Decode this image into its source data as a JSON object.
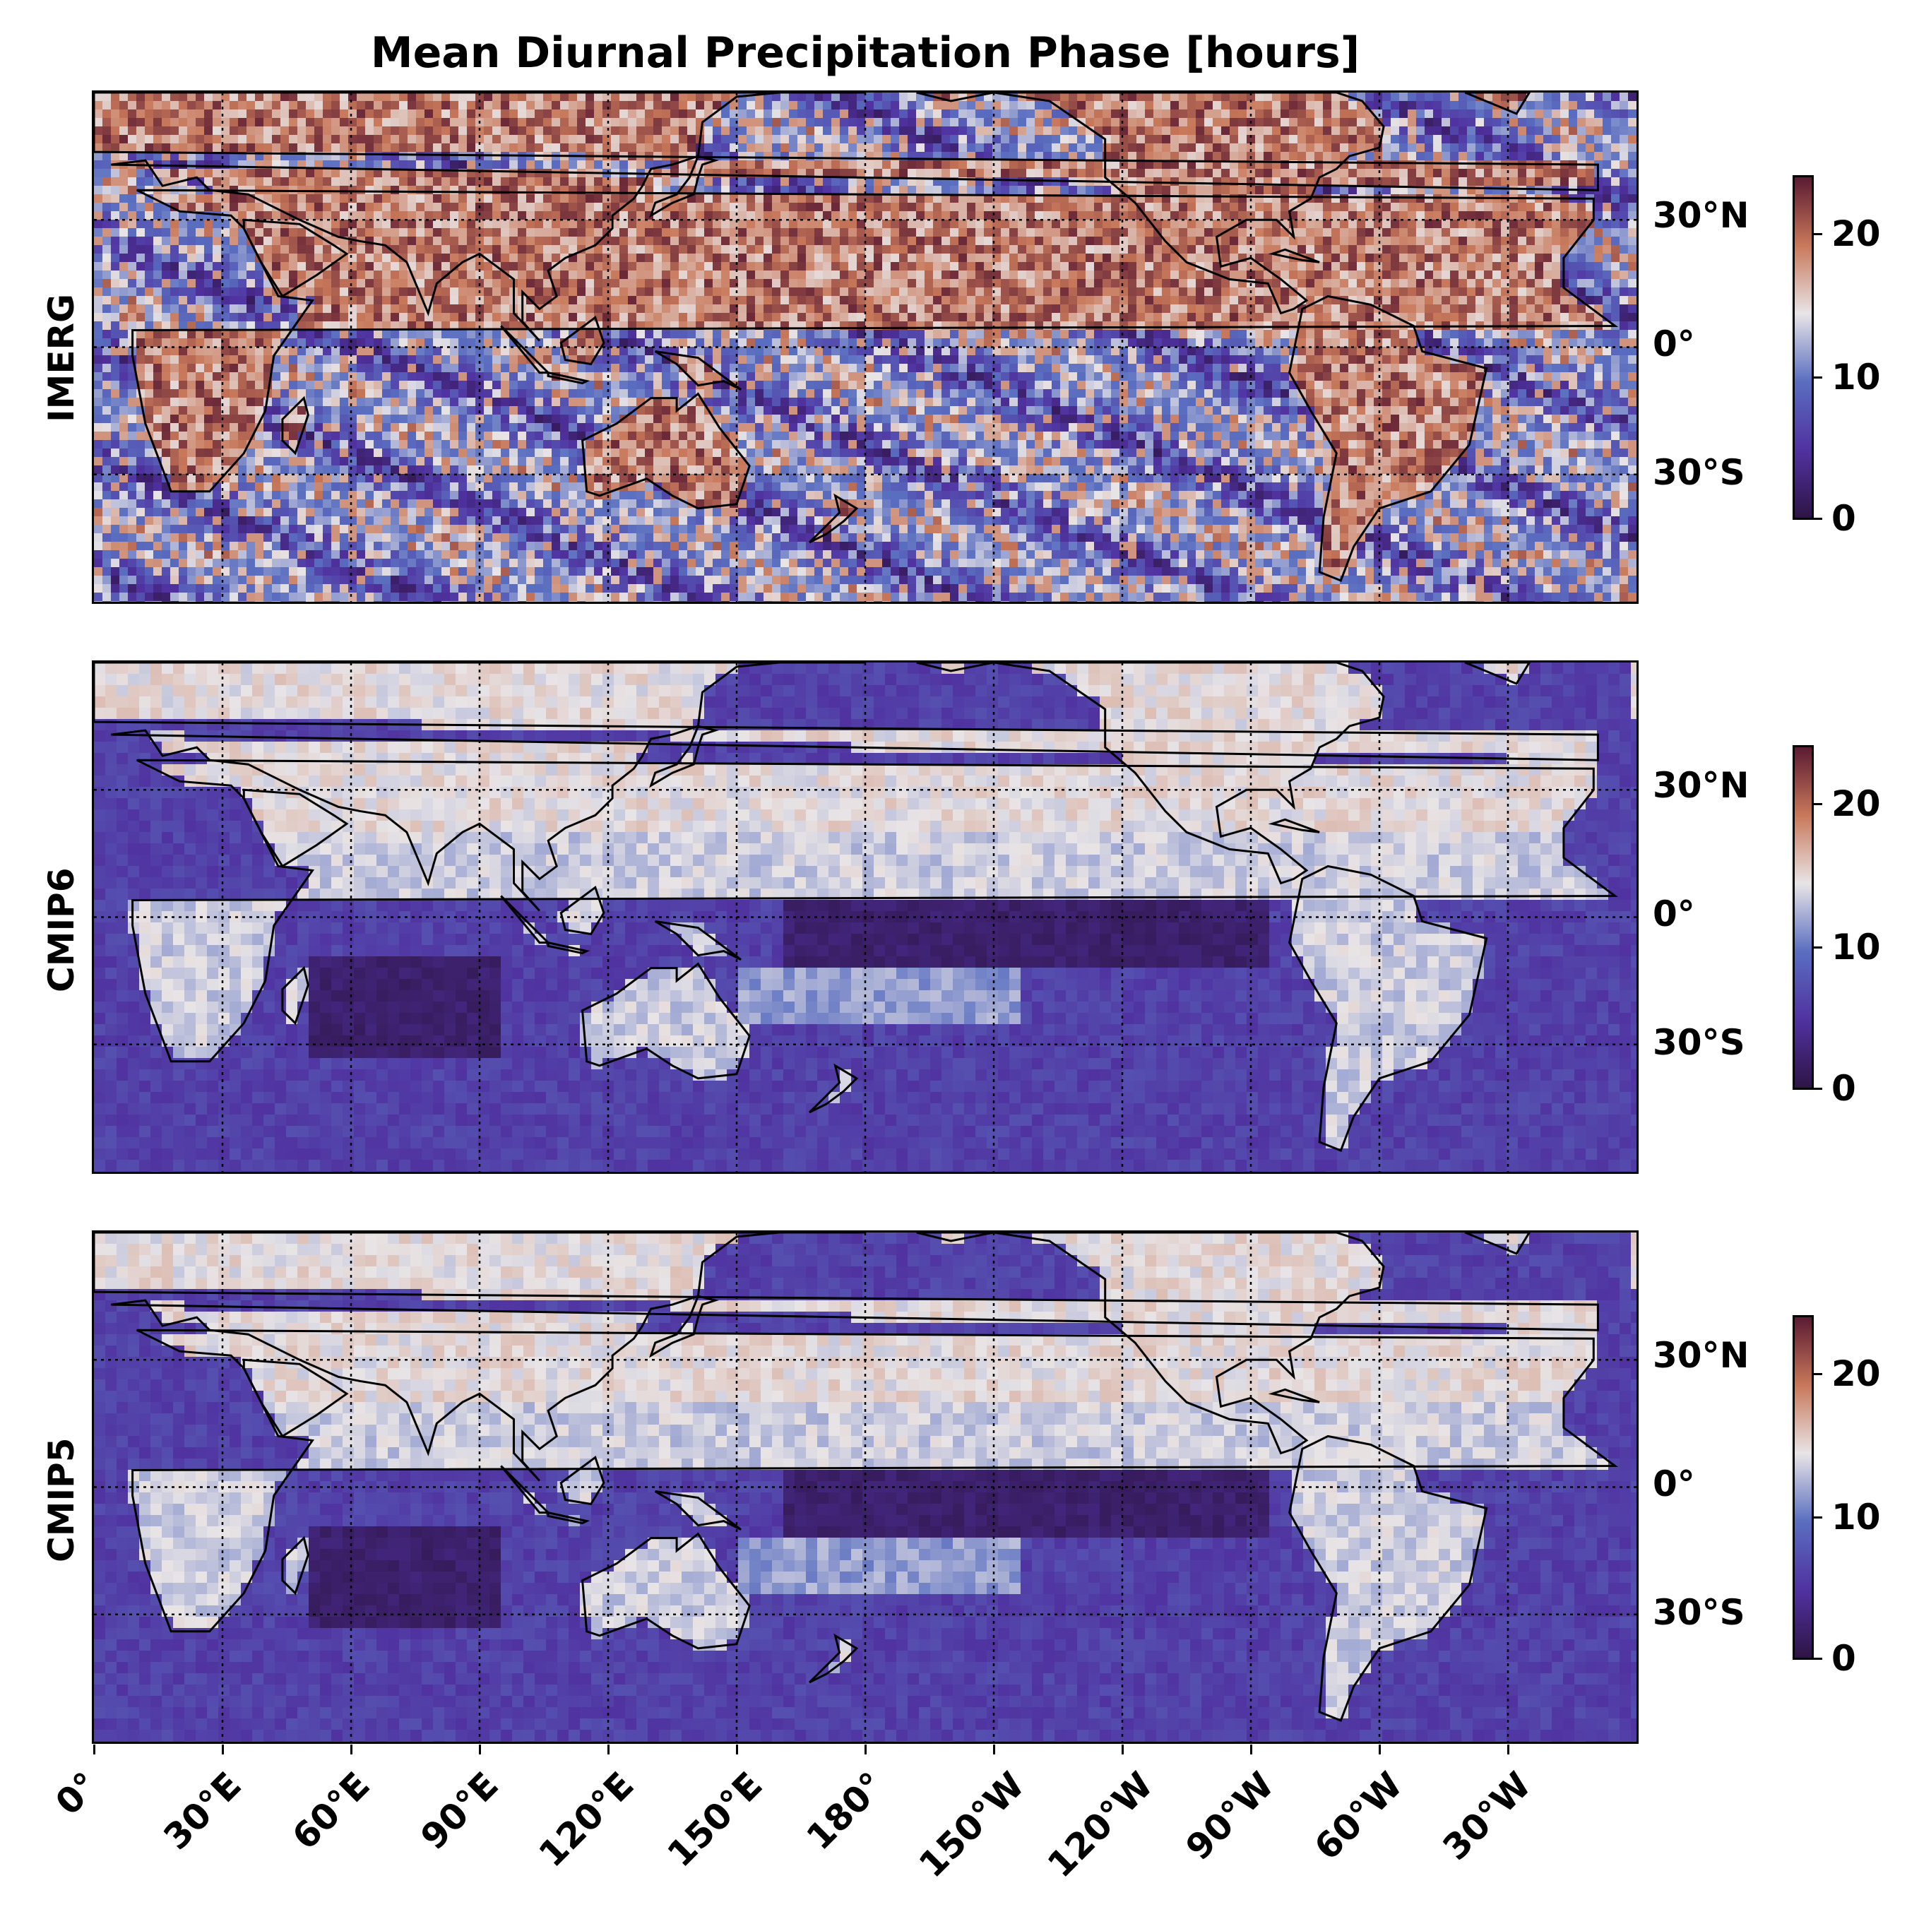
{
  "figure": {
    "title": "Mean Diurnal Precipitation Phase [hours]"
  },
  "panels": [
    {
      "label": "IMERG",
      "style": "noisy"
    },
    {
      "label": "CMIP6",
      "style": "smooth"
    },
    {
      "label": "CMIP5",
      "style": "smooth"
    }
  ],
  "latitude_labels": [
    "30°N",
    "0°",
    "30°S"
  ],
  "longitude_labels": [
    "0°",
    "30°E",
    "60°E",
    "90°E",
    "120°E",
    "150°E",
    "180°",
    "150°W",
    "120°W",
    "90°W",
    "60°W",
    "30°W"
  ],
  "colorbar": {
    "ticks": [
      "20",
      "10",
      "0"
    ],
    "range": [
      0,
      24
    ],
    "colormap": "twilight_shifted",
    "colors": [
      "#2e1446",
      "#5032a0",
      "#5a6ec0",
      "#e8e4e6",
      "#c8785a",
      "#5a1a32"
    ]
  },
  "chart_data": {
    "type": "heatmap",
    "title": "Mean Diurnal Precipitation Phase [hours]",
    "panels": [
      "IMERG",
      "CMIP6",
      "CMIP5"
    ],
    "x_axis": {
      "label": "",
      "ticks": [
        "0°",
        "30°E",
        "60°E",
        "90°E",
        "120°E",
        "150°E",
        "180°",
        "150°W",
        "120°W",
        "90°W",
        "60°W",
        "30°W"
      ],
      "range_deg_east": [
        0,
        360
      ]
    },
    "y_axis": {
      "label": "",
      "ticks": [
        "30°N",
        "0°",
        "30°S"
      ],
      "range_deg": [
        -60,
        60
      ]
    },
    "value_range": [
      0,
      24
    ],
    "grid": true
  }
}
